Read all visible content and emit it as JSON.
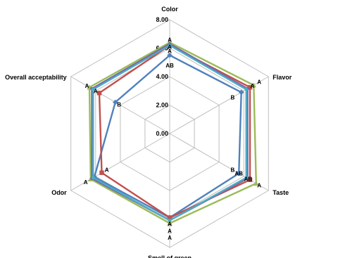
{
  "chart_data": {
    "type": "radar",
    "axes": [
      "Color",
      "Flavor",
      "Taste",
      "Smell of green",
      "Odor",
      "Overall acceptability"
    ],
    "range": [
      0,
      8
    ],
    "ticks": [
      "0.00",
      "2.00",
      "4.00",
      "6.00",
      "8.00"
    ],
    "tick_values": [
      0,
      2,
      4,
      6,
      8
    ],
    "grid": true,
    "legend": "none",
    "series": [
      {
        "color": "#4F81BD",
        "marker": "diamond",
        "values": [
          5.5,
          5.8,
          5.6,
          5.9,
          6.1,
          4.4
        ]
      },
      {
        "color": "#C0504D",
        "marker": "square",
        "values": [
          6.2,
          6.5,
          6.5,
          5.9,
          5.5,
          5.7
        ]
      },
      {
        "color": "#9BBB59",
        "marker": "triangle",
        "values": [
          6.4,
          6.8,
          7.0,
          6.3,
          6.4,
          6.5
        ]
      },
      {
        "color": "#8064A2",
        "marker": "x",
        "values": [
          6.3,
          6.3,
          6.3,
          6.1,
          6.3,
          6.3
        ]
      },
      {
        "color": "#4BACC6",
        "marker": "star",
        "values": [
          6.2,
          6.2,
          6.2,
          6.1,
          6.2,
          6.2
        ]
      }
    ],
    "annotations": [
      {
        "text": "A",
        "axis": 0,
        "value": 6.6
      },
      {
        "text": "A",
        "axis": 0,
        "value": 6.1
      },
      {
        "text": "A",
        "axis": 0,
        "value": 5.8
      },
      {
        "text": "AB",
        "axis": 0,
        "value": 4.8
      },
      {
        "text": "A",
        "axis": 1,
        "value": 7.25
      },
      {
        "text": "A",
        "axis": 1,
        "value": 6.7
      },
      {
        "text": "B",
        "axis": 1,
        "value": 5.1
      },
      {
        "text": "B",
        "axis": 2,
        "value": 5.1
      },
      {
        "text": "AB",
        "axis": 2,
        "value": 5.6
      },
      {
        "text": "AB",
        "axis": 2,
        "value": 6.35
      },
      {
        "text": "A",
        "axis": 2,
        "value": 7.25
      },
      {
        "text": "A",
        "axis": 3,
        "value": 6.35
      },
      {
        "text": "A",
        "axis": 3,
        "value": 6.85
      },
      {
        "text": "A",
        "axis": 3,
        "value": 7.3
      },
      {
        "text": "A",
        "axis": 4,
        "value": 5.1
      },
      {
        "text": "A",
        "axis": 4,
        "value": 6.8
      },
      {
        "text": "A",
        "axis": 5,
        "value": 6.7
      },
      {
        "text": "A",
        "axis": 5,
        "value": 6.0
      },
      {
        "text": "B",
        "axis": 5,
        "value": 4.1
      }
    ]
  }
}
